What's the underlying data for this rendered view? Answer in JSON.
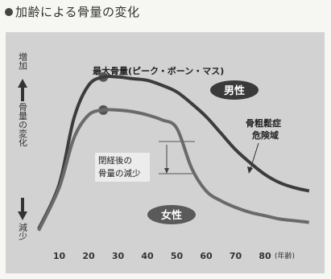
{
  "title": "加齢による骨量の変化",
  "chart_data": {
    "type": "line",
    "x": [
      3,
      10,
      15,
      20,
      25,
      30,
      35,
      40,
      45,
      50,
      55,
      60,
      65,
      70,
      75,
      80,
      85,
      90,
      95
    ],
    "series": [
      {
        "name": "男性",
        "values": [
          0.05,
          0.32,
          0.72,
          0.92,
          0.97,
          0.97,
          0.96,
          0.95,
          0.92,
          0.88,
          0.81,
          0.73,
          0.63,
          0.53,
          0.45,
          0.38,
          0.33,
          0.3,
          0.28
        ]
      },
      {
        "name": "女性",
        "values": [
          0.04,
          0.3,
          0.6,
          0.74,
          0.77,
          0.77,
          0.76,
          0.74,
          0.71,
          0.66,
          0.42,
          0.28,
          0.22,
          0.18,
          0.15,
          0.13,
          0.11,
          0.1,
          0.09
        ]
      }
    ],
    "xticks": [
      10,
      20,
      30,
      40,
      50,
      60,
      70,
      80
    ],
    "xunit": "(年齢)",
    "xlim": [
      0,
      100
    ],
    "ylim": [
      0,
      1.12
    ],
    "ylabel_top": "増加",
    "ylabel_mid": "骨量の変化",
    "ylabel_bottom": "減少",
    "annotations": {
      "peak": "最大骨量(ピーク・ボーン・マス)",
      "risk_line1": "骨粗鬆症",
      "risk_line2": "危険域",
      "meno_line1": "閉経後の",
      "meno_line2": "骨量の減少"
    },
    "colors": {
      "male": "#3c3c3c",
      "female": "#6a6a6a",
      "background": "#d2d2d2"
    }
  }
}
